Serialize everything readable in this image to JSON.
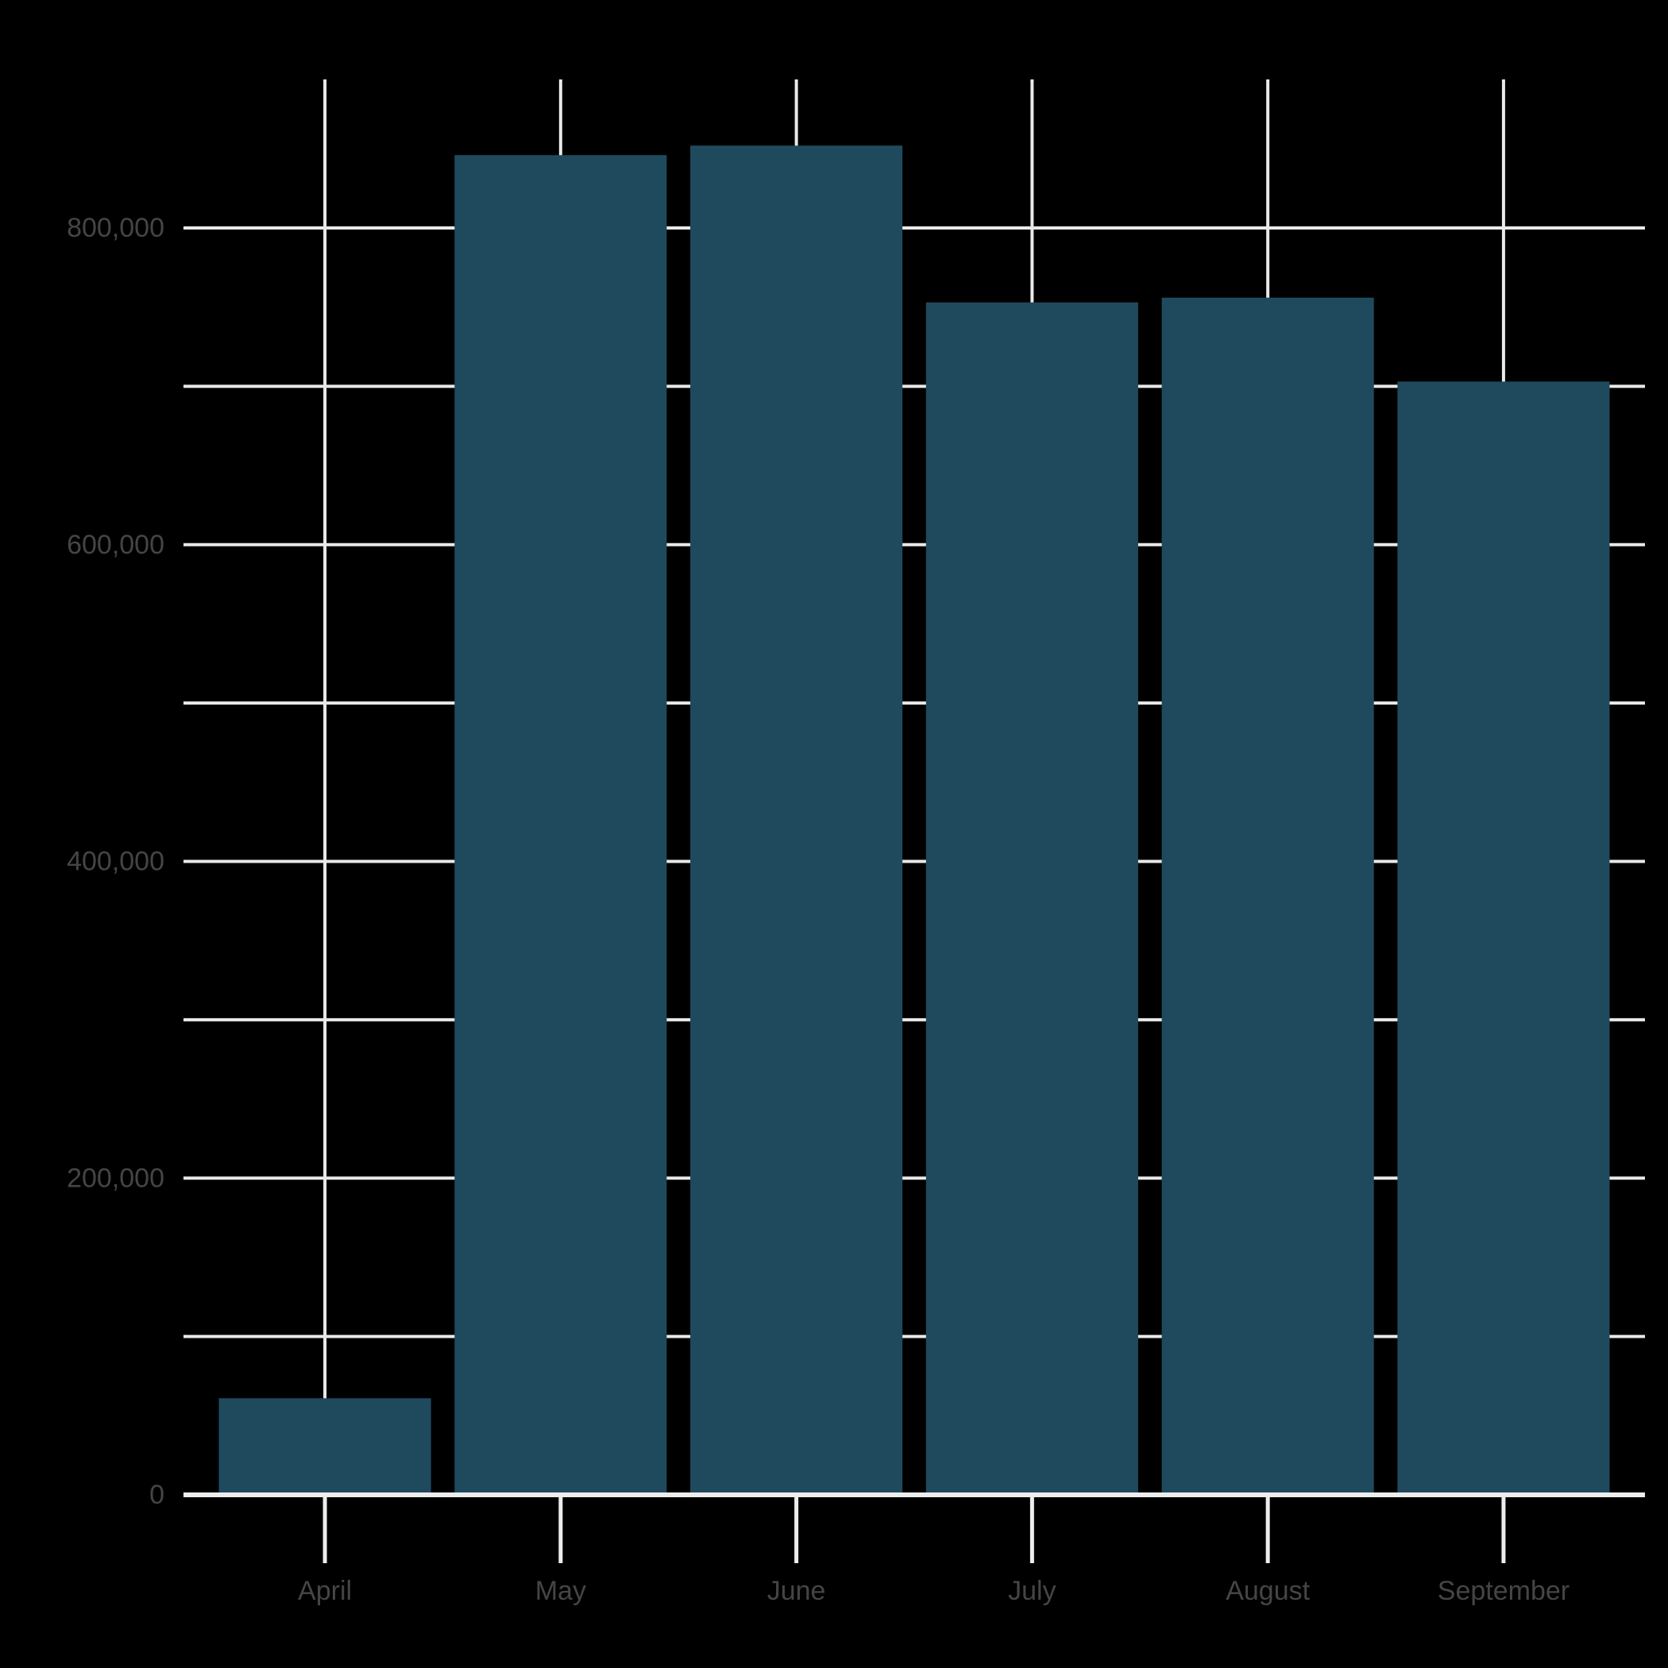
{
  "figure": {
    "background_color": "#000000"
  },
  "chart_data": {
    "type": "bar",
    "title": "",
    "xlabel": "",
    "ylabel": "",
    "categories": [
      "April",
      "May",
      "June",
      "July",
      "August",
      "September"
    ],
    "values": [
      61000,
      846000,
      852000,
      753000,
      756000,
      703000
    ],
    "ylim": [
      0,
      894000
    ],
    "y_ticks": [
      {
        "value": 0,
        "label": "0"
      },
      {
        "value": 200000,
        "label": "200,000"
      },
      {
        "value": 400000,
        "label": "400,000"
      },
      {
        "value": 600000,
        "label": "600,000"
      },
      {
        "value": 800000,
        "label": "800,000"
      }
    ],
    "y_gridline_step": 100000,
    "y_gridline_max": 800000,
    "grid": "on",
    "legend": "none",
    "colors": {
      "bar": "#1F4A5E",
      "gridline": "#E9E9E9",
      "axis_line": "#EDEDED",
      "tick_label": "#454545",
      "background": "#000000"
    }
  }
}
